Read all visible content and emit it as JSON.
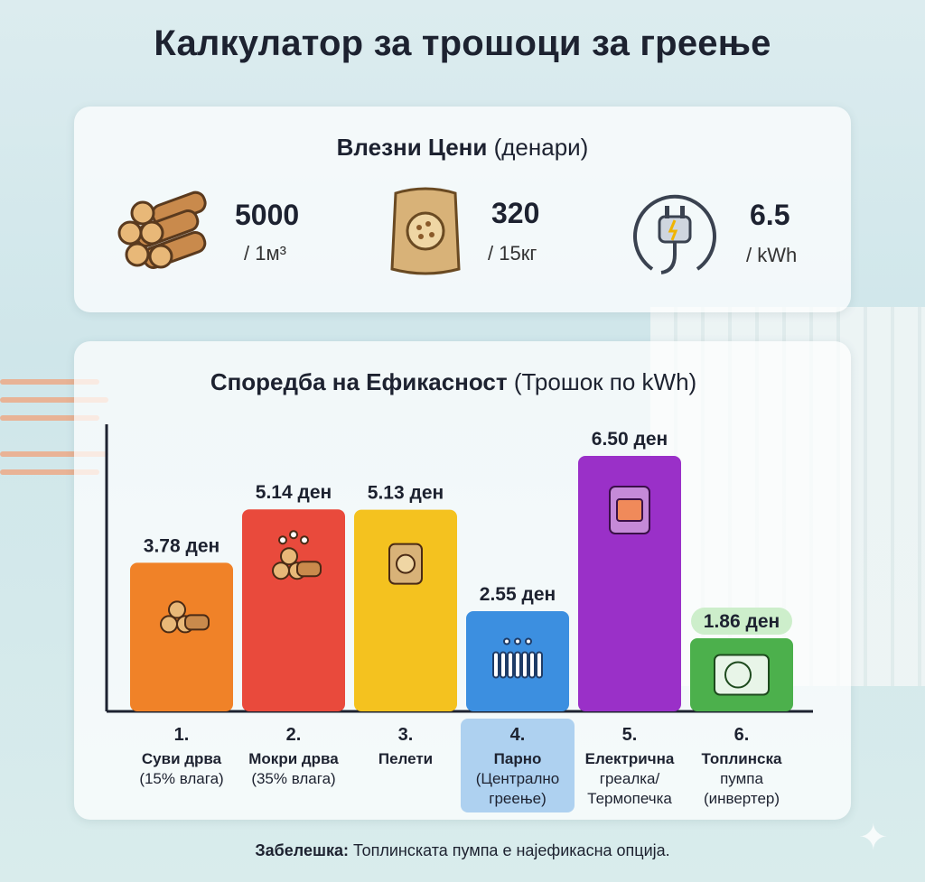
{
  "title": "Калкулатор за трошоци за греење",
  "prices": {
    "heading_bold": "Влезни Цени",
    "heading_rest": "(денари)",
    "items": [
      {
        "icon": "firewood-icon",
        "value": "5000",
        "unit": "/ 1м³"
      },
      {
        "icon": "pellet-bag-icon",
        "value": "320",
        "unit": "/ 15кг"
      },
      {
        "icon": "power-plug-icon",
        "value": "6.5",
        "unit": "/ kWh"
      }
    ]
  },
  "chart_data": {
    "type": "bar",
    "title_bold": "Споредба на Ефикасност",
    "title_rest": "(Трошок по kWh)",
    "ylim": [
      0,
      7.5
    ],
    "categories": [
      {
        "num": "1.",
        "lines": [
          "Суви дрва",
          "(15% влага)"
        ],
        "value": 3.78,
        "label": "3.78 ден",
        "color": "#f08228",
        "icon": "firewood-icon",
        "highlight": false,
        "label_badge": false
      },
      {
        "num": "2.",
        "lines": [
          "Мокри дрва",
          "(35% влага)"
        ],
        "value": 5.14,
        "label": "5.14 ден",
        "color": "#e94a3c",
        "icon": "wet-firewood-icon",
        "highlight": false,
        "label_badge": false
      },
      {
        "num": "3.",
        "lines": [
          "Пелети"
        ],
        "value": 5.13,
        "label": "5.13 ден",
        "color": "#f4c21f",
        "icon": "pellet-bag-icon",
        "highlight": false,
        "label_badge": false
      },
      {
        "num": "4.",
        "lines": [
          "Парно",
          "(Централно",
          "греење)"
        ],
        "value": 2.55,
        "label": "2.55 ден",
        "color": "#3c8fe0",
        "icon": "radiator-icon",
        "highlight": true,
        "label_badge": false
      },
      {
        "num": "5.",
        "lines": [
          "Електрична",
          "греалка/",
          "Термопечка"
        ],
        "value": 6.5,
        "label": "6.50 ден",
        "color": "#9a30c8",
        "icon": "electric-heater-icon",
        "highlight": false,
        "label_badge": false
      },
      {
        "num": "6.",
        "lines": [
          "Топлинска",
          "пумпа",
          "(инвертер)"
        ],
        "value": 1.86,
        "label": "1.86 ден",
        "color": "#4cb04c",
        "icon": "heat-pump-icon",
        "highlight": false,
        "label_badge": true
      }
    ]
  },
  "note": {
    "bold": "Забелешка:",
    "text": "Топлинската пумпа е најефикасна опција."
  }
}
